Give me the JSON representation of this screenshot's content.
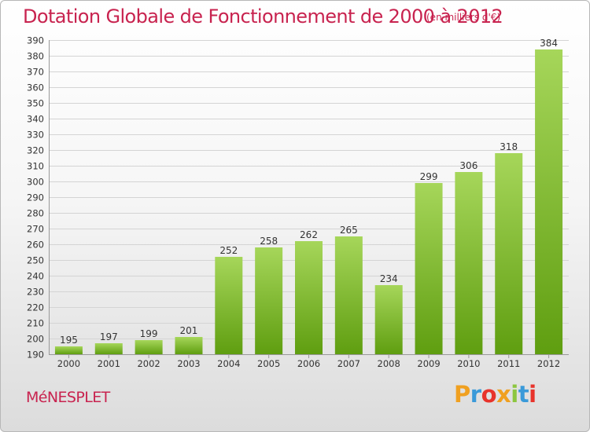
{
  "header": {
    "title": "Dotation Globale de Fonctionnement de 2000 à 2012",
    "unit": "(en milliers d'€)"
  },
  "footer": {
    "commune": "MéNESPLET",
    "logo_letters": [
      "P",
      "r",
      "o",
      "x",
      "i",
      "t",
      "i"
    ],
    "logo_colors": [
      "#f0a020",
      "#3a9ad9",
      "#e8332b",
      "#f0a020",
      "#8cc63f",
      "#3a9ad9",
      "#e8332b"
    ]
  },
  "colors": {
    "bar_light": "#a6d65a",
    "bar_dark": "#5f9e10",
    "grid": "#d4d4d4",
    "text": "#333333",
    "accent": "#c8234f"
  },
  "chart_data": {
    "type": "bar",
    "categories": [
      "2000",
      "2001",
      "2002",
      "2003",
      "2004",
      "2005",
      "2006",
      "2007",
      "2008",
      "2009",
      "2010",
      "2011",
      "2012"
    ],
    "values": [
      195,
      197,
      199,
      201,
      252,
      258,
      262,
      265,
      234,
      299,
      306,
      318,
      384
    ],
    "title": "Dotation Globale de Fonctionnement de 2000 à 2012",
    "subtitle": "(en milliers d'€)",
    "xlabel": "",
    "ylabel": "",
    "ylim": [
      190,
      390
    ],
    "yticks": [
      190,
      200,
      210,
      220,
      230,
      240,
      250,
      260,
      270,
      280,
      290,
      300,
      310,
      320,
      330,
      340,
      350,
      360,
      370,
      380,
      390
    ],
    "grid": true,
    "legend": "none"
  }
}
